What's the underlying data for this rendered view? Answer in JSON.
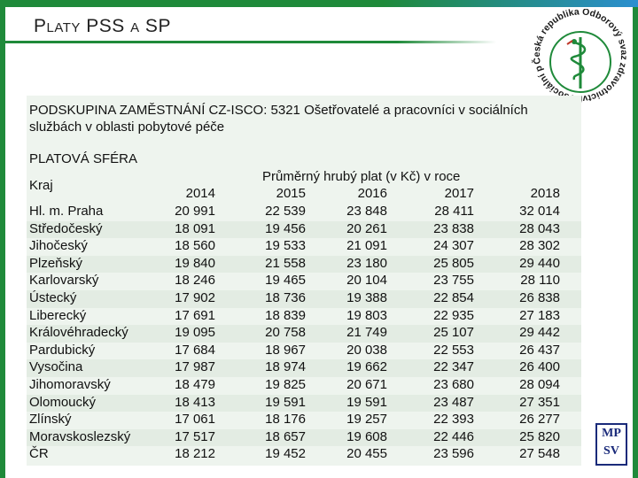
{
  "slide": {
    "title": "Platy PSS a SP",
    "subgroup_line1": "PODSKUPINA ZAMĚSTNÁNÍ CZ-ISCO: 5321 Ošetřovatelé a pracovníci v sociálních",
    "subgroup_line2": "službách v oblasti pobytové péče",
    "sphere_label": "PLATOVÁ SFÉRA",
    "region_label": "Kraj",
    "salary_header": "Průměrný hrubý plat (v Kč) v roce",
    "years": [
      "2014",
      "2015",
      "2016",
      "2017",
      "2018"
    ],
    "logo_text": "Česká republika Odborový svaz zdravotnictví a sociální péče",
    "corner_logo_top": "MP",
    "corner_logo_bottom": "SV"
  },
  "rows": [
    {
      "region": "Hl. m. Praha",
      "v": [
        "20 991",
        "22 539",
        "23 848",
        "28 411",
        "32 014"
      ]
    },
    {
      "region": "Středočeský",
      "v": [
        "18 091",
        "19 456",
        "20 261",
        "23 838",
        "28 043"
      ]
    },
    {
      "region": "Jihočeský",
      "v": [
        "18 560",
        "19 533",
        "21 091",
        "24 307",
        "28 302"
      ]
    },
    {
      "region": "Plzeňský",
      "v": [
        "19 840",
        "21 558",
        "23 180",
        "25 805",
        "29 440"
      ]
    },
    {
      "region": "Karlovarský",
      "v": [
        "18 246",
        "19 465",
        "20 104",
        "23 755",
        "28 110"
      ]
    },
    {
      "region": "Ústecký",
      "v": [
        "17 902",
        "18 736",
        "19 388",
        "22 854",
        "26 838"
      ]
    },
    {
      "region": "Liberecký",
      "v": [
        "17 691",
        "18 839",
        "19 803",
        "22 935",
        "27 183"
      ]
    },
    {
      "region": "Královéhradecký",
      "v": [
        "19 095",
        "20 758",
        "21 749",
        "25 107",
        "29 442"
      ]
    },
    {
      "region": "Pardubický",
      "v": [
        "17 684",
        "18 967",
        "20 038",
        "22 553",
        "26 437"
      ]
    },
    {
      "region": "Vysočina",
      "v": [
        "17 987",
        "18 974",
        "19 662",
        "22 347",
        "26 400"
      ]
    },
    {
      "region": "Jihomoravský",
      "v": [
        "18 479",
        "19 825",
        "20 671",
        "23 680",
        "28 094"
      ]
    },
    {
      "region": "Olomoucký",
      "v": [
        "18 413",
        "19 591",
        "19 591",
        "23 487",
        "27 351"
      ]
    },
    {
      "region": "Zlínský",
      "v": [
        "17 061",
        "18 176",
        "19 257",
        "22 393",
        "26 277"
      ]
    },
    {
      "region": "Moravskoslezský",
      "v": [
        "17 517",
        "18 657",
        "19 608",
        "22 446",
        "25 820"
      ]
    },
    {
      "region": "ČR",
      "v": [
        "18 212",
        "19 452",
        "20 455",
        "23 596",
        "27 548"
      ]
    }
  ],
  "colors": {
    "frame": "#1f8a3a",
    "accent_blue": "#2b8fd0",
    "table_bg": "#eef4ee"
  }
}
